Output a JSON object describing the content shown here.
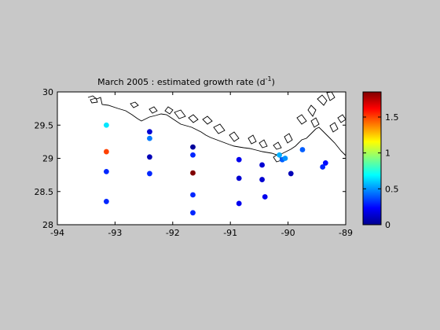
{
  "chart_data": {
    "type": "scatter",
    "title": "March 2005 : estimated growth rate (d",
    "title_superscript": "-1",
    "title_suffix": ")",
    "xlim": [
      -94,
      -89
    ],
    "ylim": [
      28,
      30
    ],
    "xticks": [
      -94,
      -93,
      -92,
      -91,
      -90,
      -89
    ],
    "yticks": [
      28,
      28.5,
      29,
      29.5,
      30
    ],
    "xtick_labels": [
      "-94",
      "-93",
      "-92",
      "-91",
      "-90",
      "-89"
    ],
    "ytick_labels": [
      "28",
      "28.5",
      "29",
      "29.5",
      "30"
    ],
    "grid": false,
    "colorbar": {
      "range": [
        0,
        1.85
      ],
      "ticks": [
        0,
        0.5,
        1,
        1.5
      ],
      "tick_labels": [
        "0",
        "0.5",
        "1",
        "1.5"
      ],
      "colormap": "jet"
    },
    "points": [
      {
        "lon": -93.15,
        "lat": 29.5,
        "rate": 0.65
      },
      {
        "lon": -93.15,
        "lat": 29.1,
        "rate": 1.5
      },
      {
        "lon": -93.15,
        "lat": 28.8,
        "rate": 0.3
      },
      {
        "lon": -93.15,
        "lat": 28.35,
        "rate": 0.3
      },
      {
        "lon": -92.4,
        "lat": 29.4,
        "rate": 0.15
      },
      {
        "lon": -92.4,
        "lat": 29.3,
        "rate": 0.45
      },
      {
        "lon": -92.4,
        "lat": 29.02,
        "rate": 0.1
      },
      {
        "lon": -92.4,
        "lat": 28.77,
        "rate": 0.3
      },
      {
        "lon": -91.65,
        "lat": 29.17,
        "rate": 0.05
      },
      {
        "lon": -91.65,
        "lat": 29.05,
        "rate": 0.3
      },
      {
        "lon": -91.65,
        "lat": 28.78,
        "rate": 1.85
      },
      {
        "lon": -91.65,
        "lat": 28.45,
        "rate": 0.3
      },
      {
        "lon": -91.65,
        "lat": 28.18,
        "rate": 0.3
      },
      {
        "lon": -90.85,
        "lat": 28.98,
        "rate": 0.2
      },
      {
        "lon": -90.85,
        "lat": 28.7,
        "rate": 0.15
      },
      {
        "lon": -90.85,
        "lat": 28.32,
        "rate": 0.2
      },
      {
        "lon": -90.45,
        "lat": 28.9,
        "rate": 0.15
      },
      {
        "lon": -90.45,
        "lat": 28.68,
        "rate": 0.15
      },
      {
        "lon": -90.4,
        "lat": 28.42,
        "rate": 0.2
      },
      {
        "lon": -90.1,
        "lat": 28.98,
        "rate": 0.4
      },
      {
        "lon": -90.05,
        "lat": 29.0,
        "rate": 0.5
      },
      {
        "lon": -90.15,
        "lat": 29.05,
        "rate": 0.55
      },
      {
        "lon": -89.95,
        "lat": 28.77,
        "rate": 0.1
      },
      {
        "lon": -89.75,
        "lat": 29.13,
        "rate": 0.4
      },
      {
        "lon": -89.4,
        "lat": 28.87,
        "rate": 0.3
      },
      {
        "lon": -89.35,
        "lat": 28.93,
        "rate": 0.25
      }
    ]
  }
}
